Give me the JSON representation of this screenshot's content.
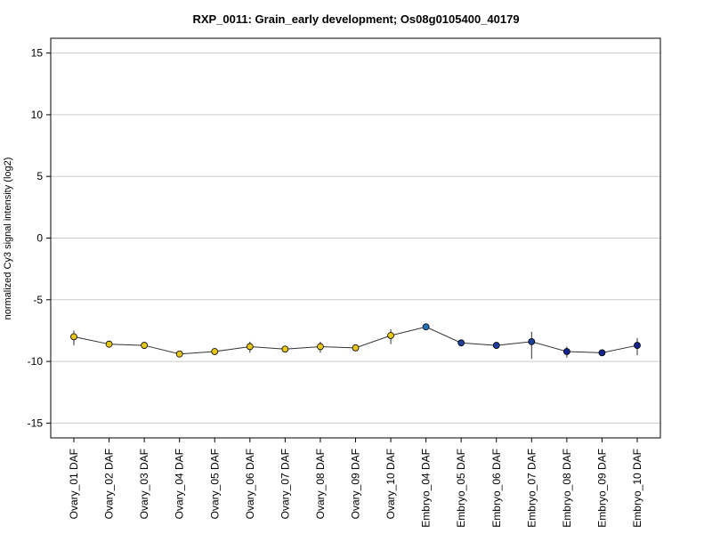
{
  "chart_data": {
    "type": "line",
    "title": "RXP_0011: Grain_early development; Os08g0105400_40179",
    "xlabel": "",
    "ylabel": "normalized Cy3 signal intensity (log2)",
    "ylim": [
      -16.2,
      16.2
    ],
    "yticks": [
      -15,
      -10,
      -5,
      0,
      5,
      10,
      15
    ],
    "grid": true,
    "categories": [
      "Ovary_01 DAF",
      "Ovary_02 DAF",
      "Ovary_03 DAF",
      "Ovary_04 DAF",
      "Ovary_05 DAF",
      "Ovary_06 DAF",
      "Ovary_07 DAF",
      "Ovary_08 DAF",
      "Ovary_09 DAF",
      "Ovary_10 DAF",
      "Embryo_04 DAF",
      "Embryo_05 DAF",
      "Embryo_06 DAF",
      "Embryo_07 DAF",
      "Embryo_08 DAF",
      "Embryo_09 DAF",
      "Embryo_10 DAF"
    ],
    "values": [
      -8.0,
      -8.6,
      -8.7,
      -9.4,
      -9.2,
      -8.8,
      -9.0,
      -8.8,
      -8.9,
      -7.9,
      -7.2,
      -8.5,
      -8.7,
      -8.4,
      -9.2,
      -9.3,
      -8.7
    ],
    "error_low": [
      -8.7,
      -8.7,
      -8.9,
      -9.5,
      -9.4,
      -9.3,
      -9.2,
      -9.3,
      -9.0,
      -8.6,
      -7.3,
      -8.6,
      -8.9,
      -9.8,
      -9.7,
      -9.4,
      -9.5
    ],
    "error_high": [
      -7.5,
      -8.5,
      -8.5,
      -9.3,
      -9.0,
      -8.4,
      -8.8,
      -8.4,
      -8.8,
      -7.4,
      -7.1,
      -8.4,
      -8.5,
      -7.6,
      -8.8,
      -9.2,
      -8.1
    ],
    "point_colors": [
      "#e6c619",
      "#e6c619",
      "#e6c619",
      "#e6c619",
      "#e6c619",
      "#e6c619",
      "#e6c619",
      "#e6c619",
      "#e6c619",
      "#e6c619",
      "#2470b8",
      "#1e3f9c",
      "#1e3f9c",
      "#1e3f9c",
      "#16238f",
      "#16238f",
      "#16238f"
    ],
    "line_color": "#333333",
    "grid_color": "#cccccc"
  }
}
